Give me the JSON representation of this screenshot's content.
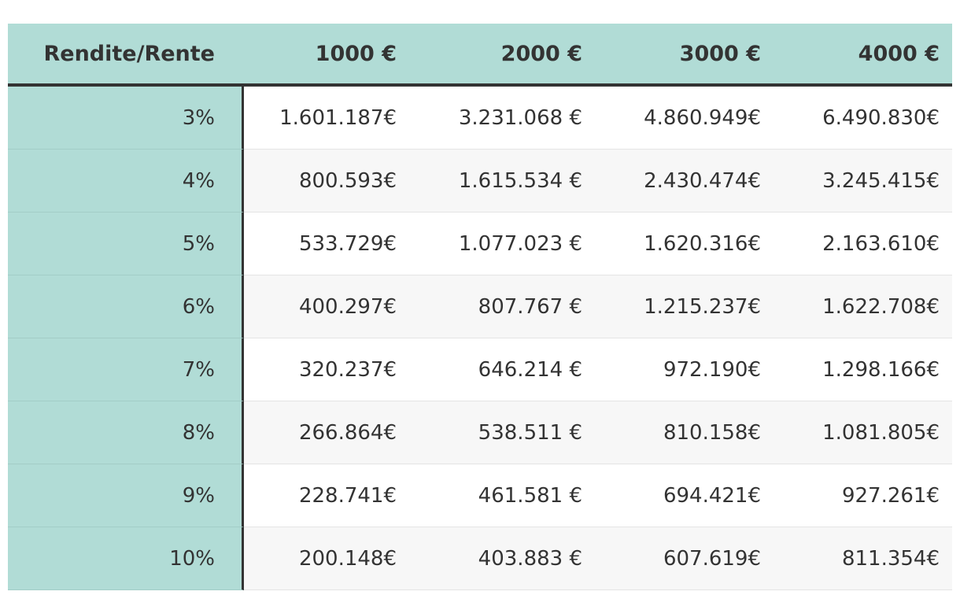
{
  "table": {
    "headers": [
      "Rendite/Rente",
      "1000 €",
      "2000 €",
      "3000 €",
      "4000 €"
    ],
    "rows": [
      [
        "3%",
        "1.601.187€",
        "3.231.068 €",
        "4.860.949€",
        "6.490.830€"
      ],
      [
        "4%",
        "800.593€",
        "1.615.534 €",
        "2.430.474€",
        "3.245.415€"
      ],
      [
        "5%",
        "533.729€",
        "1.077.023 €",
        "1.620.316€",
        "2.163.610€"
      ],
      [
        "6%",
        "400.297€",
        "807.767 €",
        "1.215.237€",
        "1.622.708€"
      ],
      [
        "7%",
        "320.237€",
        "646.214 €",
        "972.190€",
        "1.298.166€"
      ],
      [
        "8%",
        "266.864€",
        "538.511 €",
        "810.158€",
        "1.081.805€"
      ],
      [
        "9%",
        "228.741€",
        "461.581 €",
        "694.421€",
        "927.261€"
      ],
      [
        "10%",
        "200.148€",
        "403.883 €",
        "607.619€",
        "811.354€"
      ]
    ]
  },
  "colors": {
    "header_bg": "#b1dcd6",
    "border": "#333333",
    "row_alt_bg": "#f7f7f7",
    "text": "#333333"
  }
}
